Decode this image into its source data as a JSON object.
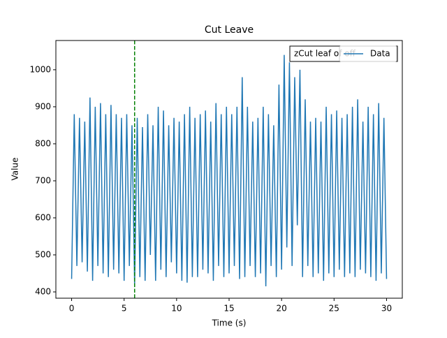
{
  "chart_data": {
    "type": "line",
    "title": "Cut Leave",
    "xlabel": "Time (s)",
    "ylabel": "Value",
    "x": [
      0,
      0.25,
      0.5,
      0.75,
      1,
      1.25,
      1.5,
      1.75,
      2,
      2.25,
      2.5,
      2.75,
      3,
      3.25,
      3.5,
      3.75,
      4,
      4.25,
      4.5,
      4.75,
      5,
      5.25,
      5.5,
      5.75,
      6,
      6.25,
      6.5,
      6.75,
      7,
      7.25,
      7.5,
      7.75,
      8,
      8.25,
      8.5,
      8.75,
      9,
      9.25,
      9.5,
      9.75,
      10,
      10.25,
      10.5,
      10.75,
      11,
      11.25,
      11.5,
      11.75,
      12,
      12.25,
      12.5,
      12.75,
      13,
      13.25,
      13.5,
      13.75,
      14,
      14.25,
      14.5,
      14.75,
      15,
      15.25,
      15.5,
      15.75,
      16,
      16.25,
      16.5,
      16.75,
      17,
      17.25,
      17.5,
      17.75,
      18,
      18.25,
      18.5,
      18.75,
      19,
      19.25,
      19.5,
      19.75,
      20,
      20.25,
      20.5,
      20.75,
      21,
      21.25,
      21.5,
      21.75,
      22,
      22.25,
      22.5,
      22.75,
      23,
      23.25,
      23.5,
      23.75,
      24,
      24.25,
      24.5,
      24.75,
      25,
      25.25,
      25.5,
      25.75,
      26,
      26.25,
      26.5,
      26.75,
      27,
      27.25,
      27.5,
      27.75,
      28,
      28.25,
      28.5,
      28.75,
      29,
      29.25,
      29.5,
      29.75,
      30
    ],
    "series": [
      {
        "name": "Data",
        "color": "#1f77b4",
        "values": [
          435,
          880,
          470,
          870,
          480,
          860,
          455,
          925,
          430,
          900,
          470,
          910,
          450,
          880,
          440,
          905,
          460,
          880,
          450,
          870,
          430,
          880,
          470,
          850,
          420,
          870,
          440,
          845,
          430,
          880,
          500,
          850,
          430,
          900,
          460,
          890,
          440,
          850,
          480,
          870,
          450,
          860,
          430,
          880,
          425,
          900,
          440,
          870,
          440,
          880,
          460,
          890,
          450,
          860,
          430,
          910,
          470,
          880,
          440,
          900,
          450,
          880,
          470,
          900,
          435,
          980,
          440,
          900,
          470,
          860,
          440,
          870,
          450,
          900,
          415,
          880,
          470,
          850,
          440,
          960,
          460,
          1040,
          520,
          1020,
          470,
          980,
          580,
          1000,
          440,
          920,
          470,
          860,
          440,
          870,
          450,
          860,
          430,
          900,
          450,
          880,
          440,
          890,
          460,
          870,
          440,
          880,
          450,
          900,
          440,
          920,
          460,
          860,
          450,
          900,
          440,
          880,
          430,
          910,
          450,
          870,
          435
        ]
      }
    ],
    "vline": {
      "x": 6,
      "color": "green"
    },
    "annotation": "zCut leaf of off",
    "xlim": [
      -1.5,
      31.5
    ],
    "ylim": [
      383,
      1079
    ],
    "xticks": [
      0,
      5,
      10,
      15,
      20,
      25,
      30
    ],
    "yticks": [
      400,
      500,
      600,
      700,
      800,
      900,
      1000
    ],
    "legend": "upper right"
  }
}
